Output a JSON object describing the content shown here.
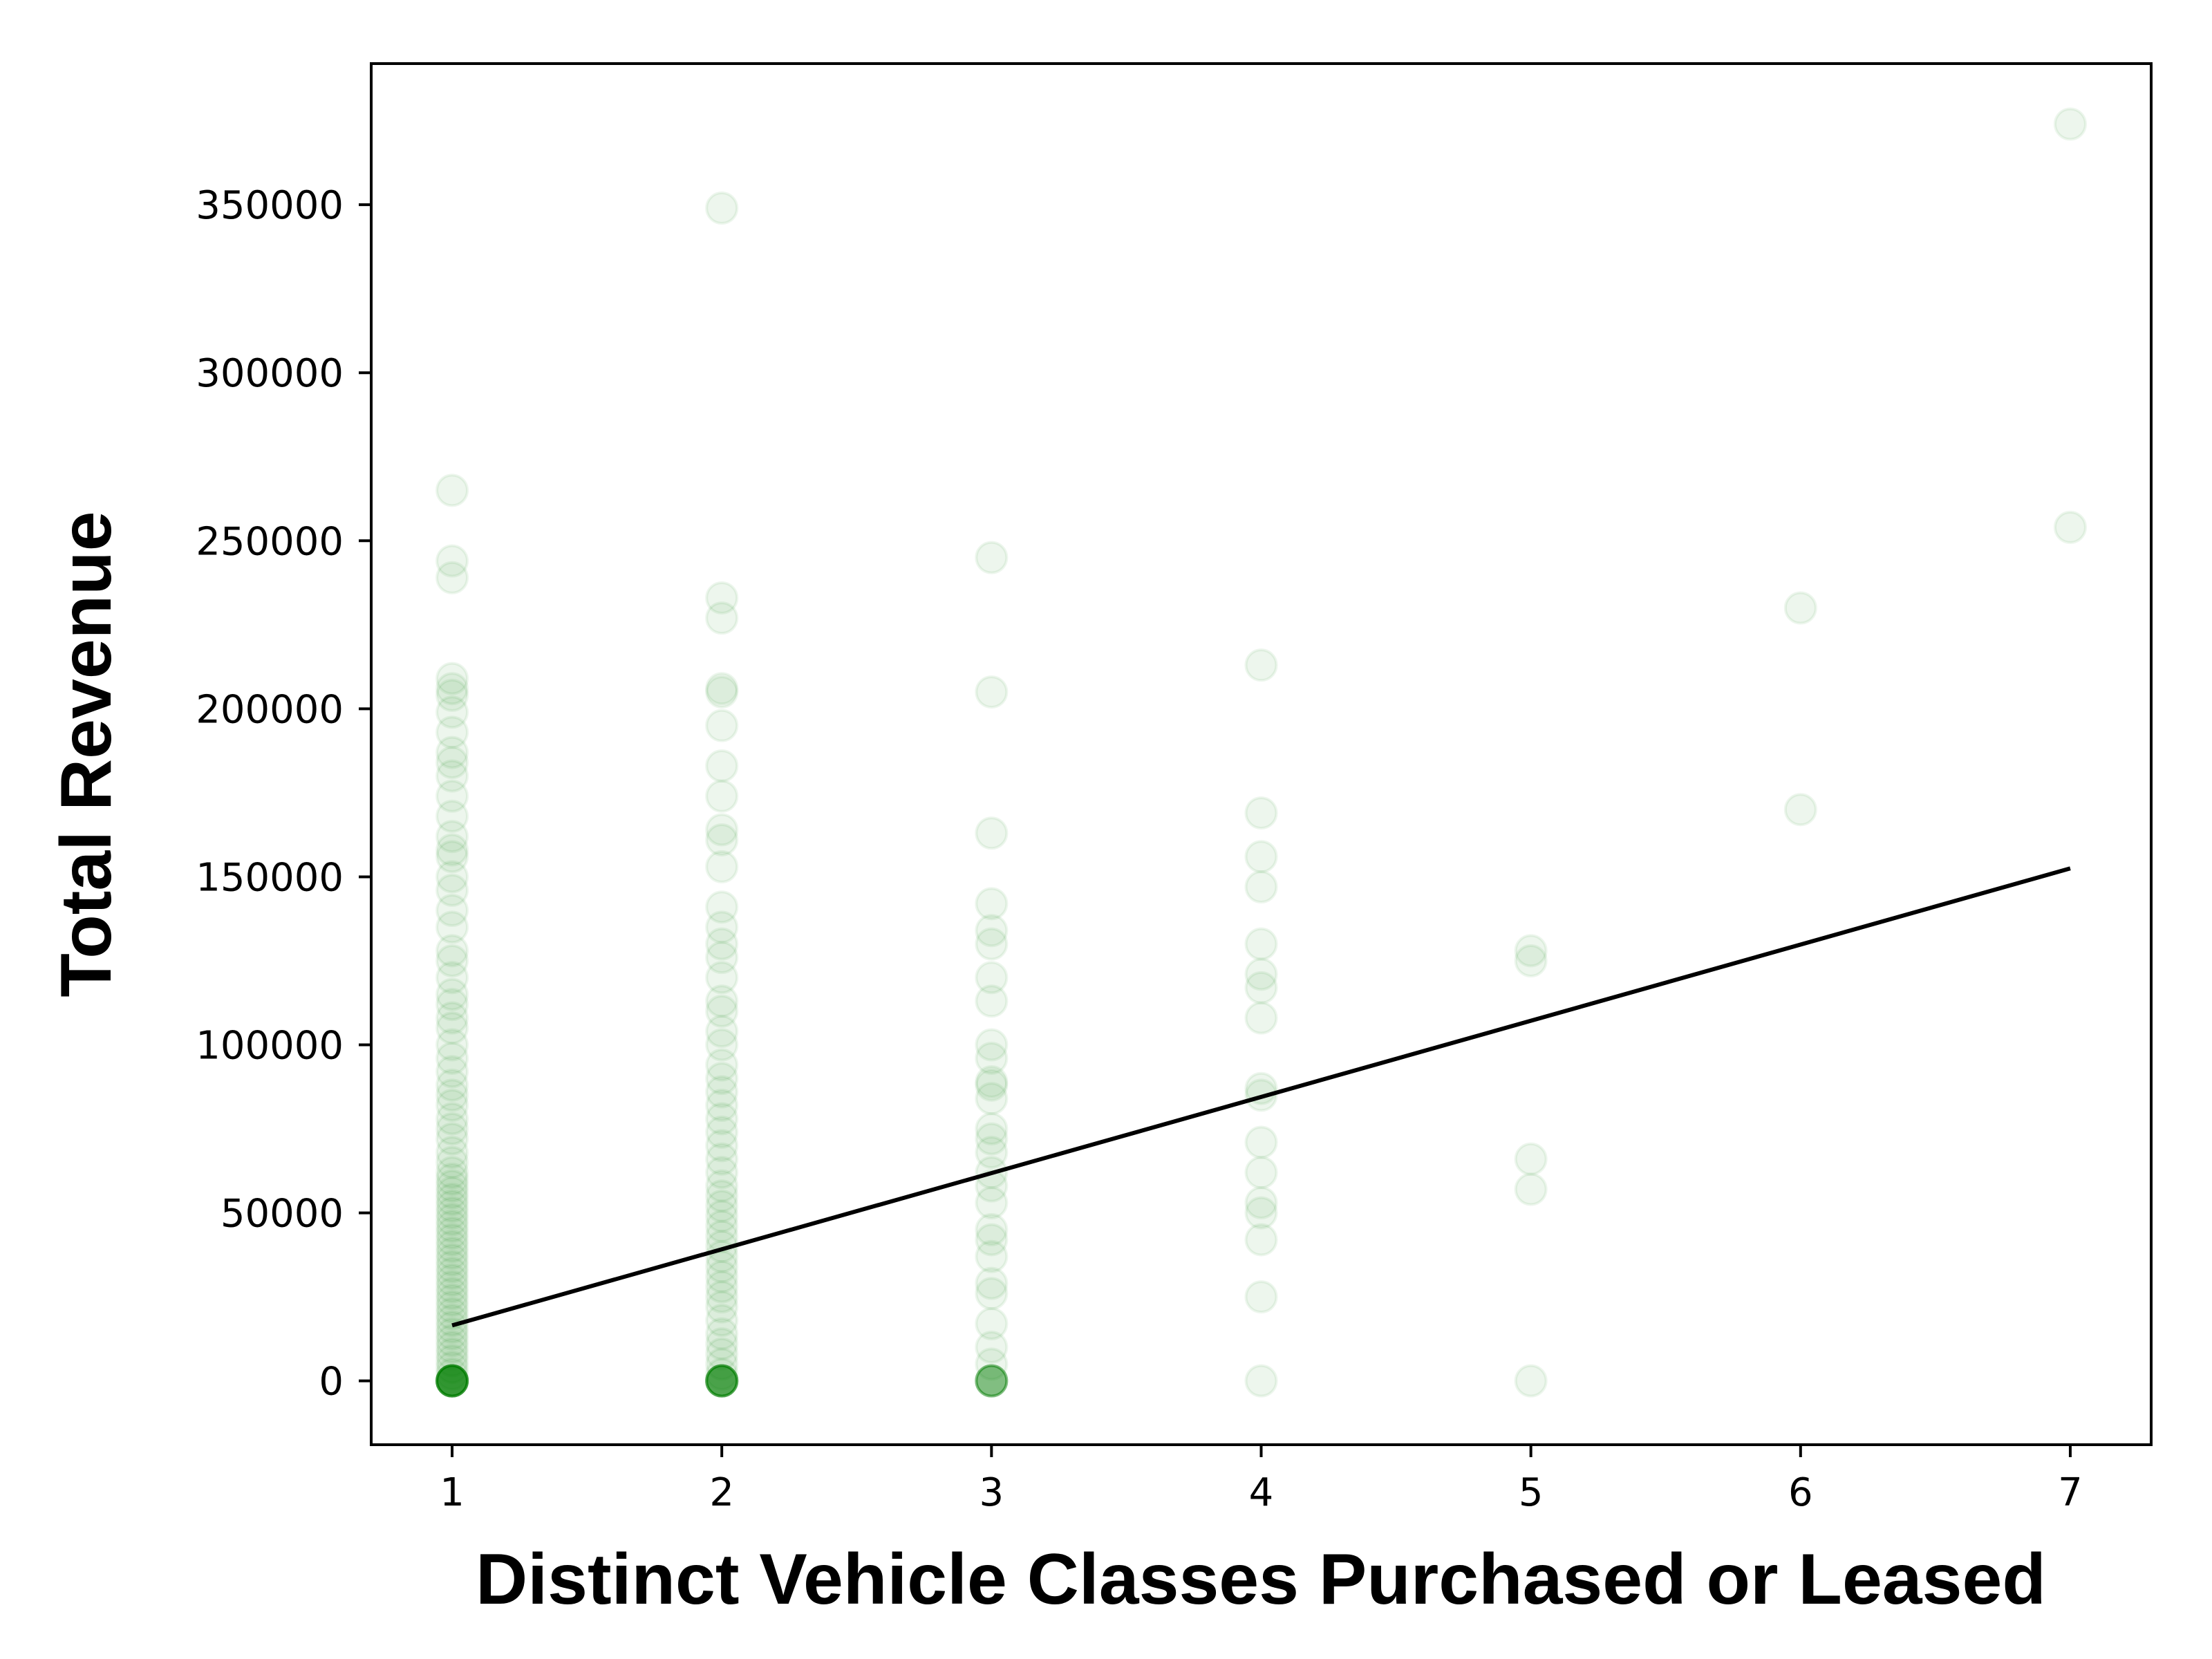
{
  "chart_data": {
    "type": "scatter",
    "xlabel": "Distinct Vehicle Classes Purchased or Leased",
    "ylabel": "Total Revenue",
    "xlim": [
      0.7,
      7.3
    ],
    "ylim": [
      -19000,
      392000
    ],
    "xticks": [
      1,
      2,
      3,
      4,
      5,
      6,
      7
    ],
    "yticks": [
      0,
      50000,
      100000,
      150000,
      200000,
      250000,
      300000,
      350000
    ],
    "grid": false,
    "legend": "none",
    "point_color": "#008000",
    "point_opacity": 0.07,
    "trend_color": "#000000",
    "series": [
      {
        "values": [
          [
            1,
            265000
          ],
          [
            1,
            244000
          ],
          [
            1,
            239000
          ],
          [
            1,
            209000
          ],
          [
            1,
            206000
          ],
          [
            1,
            204000
          ],
          [
            1,
            199000
          ],
          [
            1,
            193000
          ],
          [
            1,
            187000
          ],
          [
            1,
            184000
          ],
          [
            1,
            180000
          ],
          [
            1,
            174000
          ],
          [
            1,
            168000
          ],
          [
            1,
            162000
          ],
          [
            1,
            158000
          ],
          [
            1,
            156000
          ],
          [
            1,
            150000
          ],
          [
            1,
            146000
          ],
          [
            1,
            140000
          ],
          [
            1,
            135000
          ],
          [
            1,
            128000
          ],
          [
            1,
            125000
          ],
          [
            1,
            120000
          ],
          [
            1,
            115000
          ],
          [
            1,
            112000
          ],
          [
            1,
            108000
          ],
          [
            1,
            105000
          ],
          [
            1,
            100000
          ],
          [
            1,
            96000
          ],
          [
            1,
            92000
          ],
          [
            1,
            88000
          ],
          [
            1,
            85000
          ],
          [
            1,
            82000
          ],
          [
            1,
            78000
          ],
          [
            1,
            75000
          ],
          [
            1,
            72000
          ],
          [
            1,
            68000
          ],
          [
            1,
            65000
          ],
          [
            1,
            62000
          ],
          [
            1,
            60000
          ],
          [
            1,
            58000
          ],
          [
            1,
            56000
          ],
          [
            1,
            54000
          ],
          [
            1,
            52000
          ],
          [
            1,
            50000
          ],
          [
            1,
            48000
          ],
          [
            1,
            46000
          ],
          [
            1,
            44000
          ],
          [
            1,
            42000
          ],
          [
            1,
            40000
          ],
          [
            1,
            38000
          ],
          [
            1,
            36000
          ],
          [
            1,
            34000
          ],
          [
            1,
            32000
          ],
          [
            1,
            30000
          ],
          [
            1,
            28000
          ],
          [
            1,
            26000
          ],
          [
            1,
            24000
          ],
          [
            1,
            22000
          ],
          [
            1,
            20000
          ],
          [
            1,
            18000
          ],
          [
            1,
            16000
          ],
          [
            1,
            14000
          ],
          [
            1,
            12000
          ],
          [
            1,
            10000
          ],
          [
            1,
            8000
          ],
          [
            1,
            6000
          ],
          [
            1,
            4000
          ],
          [
            1,
            2000
          ],
          [
            1,
            0
          ],
          [
            1,
            0
          ],
          [
            1,
            0
          ],
          [
            1,
            0
          ],
          [
            1,
            0
          ],
          [
            1,
            0
          ],
          [
            1,
            0
          ],
          [
            1,
            0
          ],
          [
            1,
            0
          ],
          [
            1,
            0
          ],
          [
            1,
            0
          ],
          [
            1,
            0
          ],
          [
            1,
            0
          ],
          [
            1,
            0
          ],
          [
            1,
            0
          ],
          [
            1,
            0
          ],
          [
            1,
            0
          ],
          [
            1,
            0
          ],
          [
            1,
            0
          ],
          [
            1,
            0
          ],
          [
            2,
            349000
          ],
          [
            2,
            233000
          ],
          [
            2,
            227000
          ],
          [
            2,
            206000
          ],
          [
            2,
            205000
          ],
          [
            2,
            195000
          ],
          [
            2,
            183000
          ],
          [
            2,
            174000
          ],
          [
            2,
            164000
          ],
          [
            2,
            161000
          ],
          [
            2,
            153000
          ],
          [
            2,
            141000
          ],
          [
            2,
            135000
          ],
          [
            2,
            130000
          ],
          [
            2,
            126000
          ],
          [
            2,
            120000
          ],
          [
            2,
            113000
          ],
          [
            2,
            110000
          ],
          [
            2,
            104000
          ],
          [
            2,
            100000
          ],
          [
            2,
            94000
          ],
          [
            2,
            90000
          ],
          [
            2,
            86000
          ],
          [
            2,
            82000
          ],
          [
            2,
            78000
          ],
          [
            2,
            74000
          ],
          [
            2,
            70000
          ],
          [
            2,
            66000
          ],
          [
            2,
            62000
          ],
          [
            2,
            58000
          ],
          [
            2,
            55000
          ],
          [
            2,
            52000
          ],
          [
            2,
            49000
          ],
          [
            2,
            46000
          ],
          [
            2,
            43000
          ],
          [
            2,
            40000
          ],
          [
            2,
            37000
          ],
          [
            2,
            34000
          ],
          [
            2,
            31000
          ],
          [
            2,
            28000
          ],
          [
            2,
            25000
          ],
          [
            2,
            22000
          ],
          [
            2,
            18000
          ],
          [
            2,
            14000
          ],
          [
            2,
            11000
          ],
          [
            2,
            8000
          ],
          [
            2,
            5000
          ],
          [
            2,
            2000
          ],
          [
            2,
            0
          ],
          [
            2,
            0
          ],
          [
            2,
            0
          ],
          [
            2,
            0
          ],
          [
            2,
            0
          ],
          [
            2,
            0
          ],
          [
            2,
            0
          ],
          [
            2,
            0
          ],
          [
            2,
            0
          ],
          [
            2,
            0
          ],
          [
            2,
            0
          ],
          [
            2,
            0
          ],
          [
            2,
            0
          ],
          [
            2,
            0
          ],
          [
            2,
            0
          ],
          [
            3,
            245000
          ],
          [
            3,
            205000
          ],
          [
            3,
            163000
          ],
          [
            3,
            142000
          ],
          [
            3,
            134000
          ],
          [
            3,
            130000
          ],
          [
            3,
            120000
          ],
          [
            3,
            113000
          ],
          [
            3,
            100000
          ],
          [
            3,
            96000
          ],
          [
            3,
            89000
          ],
          [
            3,
            88000
          ],
          [
            3,
            84000
          ],
          [
            3,
            75000
          ],
          [
            3,
            72000
          ],
          [
            3,
            68000
          ],
          [
            3,
            62000
          ],
          [
            3,
            58000
          ],
          [
            3,
            53000
          ],
          [
            3,
            45000
          ],
          [
            3,
            42000
          ],
          [
            3,
            37000
          ],
          [
            3,
            29000
          ],
          [
            3,
            26000
          ],
          [
            3,
            17000
          ],
          [
            3,
            10000
          ],
          [
            3,
            5000
          ],
          [
            3,
            0
          ],
          [
            3,
            0
          ],
          [
            3,
            0
          ],
          [
            3,
            0
          ],
          [
            3,
            0
          ],
          [
            3,
            0
          ],
          [
            3,
            0
          ],
          [
            3,
            0
          ],
          [
            3,
            0
          ],
          [
            4,
            213000
          ],
          [
            4,
            169000
          ],
          [
            4,
            156000
          ],
          [
            4,
            147000
          ],
          [
            4,
            130000
          ],
          [
            4,
            121000
          ],
          [
            4,
            117000
          ],
          [
            4,
            108000
          ],
          [
            4,
            87000
          ],
          [
            4,
            85000
          ],
          [
            4,
            71000
          ],
          [
            4,
            62000
          ],
          [
            4,
            53000
          ],
          [
            4,
            50000
          ],
          [
            4,
            42000
          ],
          [
            4,
            25000
          ],
          [
            4,
            0
          ],
          [
            5,
            128000
          ],
          [
            5,
            125000
          ],
          [
            5,
            66000
          ],
          [
            5,
            57000
          ],
          [
            5,
            0
          ],
          [
            6,
            230000
          ],
          [
            6,
            170000
          ],
          [
            7,
            374000
          ],
          [
            7,
            254000
          ]
        ]
      }
    ],
    "trend_line": [
      [
        1,
        16500
      ],
      [
        7,
        152500
      ]
    ]
  }
}
